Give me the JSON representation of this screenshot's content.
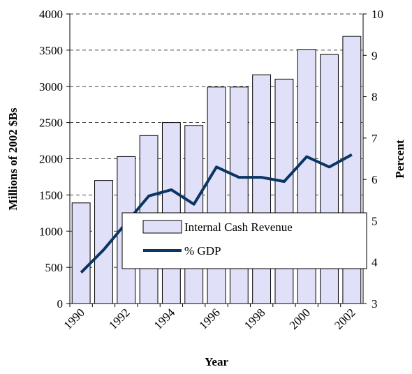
{
  "chart_data": {
    "type": "bar-line",
    "x_label": "Year",
    "y_label": "Millions of 2002 $Bs",
    "y2_label": "Percent",
    "categories": [
      "1990",
      null,
      "1992",
      null,
      "1994",
      null,
      "1996",
      null,
      "1998",
      null,
      "2000",
      null,
      "2002"
    ],
    "series": [
      {
        "name": "Internal Cash Revenue",
        "type": "bar",
        "color": "#e0e0f8",
        "values": [
          1390,
          1700,
          2030,
          2320,
          2500,
          2460,
          2990,
          2990,
          3160,
          3100,
          3510,
          3440,
          3690
        ]
      },
      {
        "name": "% GDP",
        "type": "line",
        "axis": "y2",
        "color": "#0b3563",
        "values": [
          3.75,
          4.3,
          4.95,
          5.6,
          5.75,
          5.4,
          6.3,
          6.05,
          6.05,
          5.95,
          6.55,
          6.3,
          6.6
        ]
      }
    ],
    "ylim": [
      0,
      4000
    ],
    "yticks": [
      0,
      500,
      1000,
      1500,
      2000,
      2500,
      3000,
      3500,
      4000
    ],
    "y2lim": [
      3,
      10
    ],
    "y2ticks": [
      3,
      4,
      5,
      6,
      7,
      8,
      9,
      10
    ],
    "grid": true
  }
}
